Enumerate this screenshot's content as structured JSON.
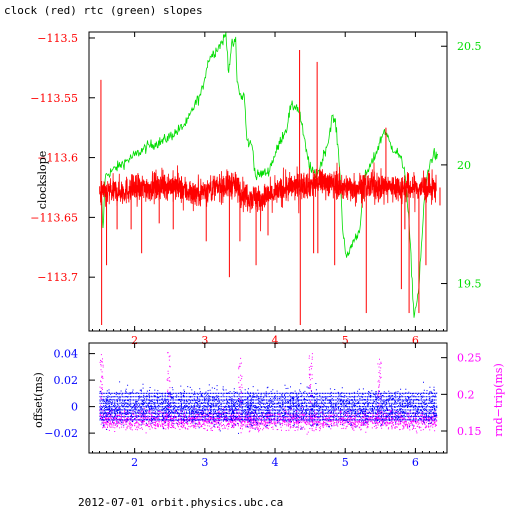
{
  "title": "clock (red) rtc (green) slopes",
  "footer": "2012-07-01  orbit.physics.ubc.ca",
  "colors": {
    "clock": "#ff0000",
    "rtc": "#00dd00",
    "offset": "#0000ff",
    "rndtrip": "#ff00ff",
    "axis": "#000000"
  },
  "chart_data": [
    {
      "type": "line",
      "ylabel": "clockslope",
      "xlim": [
        1.35,
        6.45
      ],
      "ylim": [
        -113.745,
        -113.495
      ],
      "y2lim": [
        19.3,
        20.56
      ],
      "x_ticks": [
        2,
        3,
        4,
        5,
        6
      ],
      "y_ticks": [
        -113.5,
        -113.55,
        -113.6,
        -113.65,
        -113.7
      ],
      "y_tick_labels": [
        "−113.5",
        "−113.55",
        "−113.6",
        "−113.65",
        "−113.7"
      ],
      "y2_ticks": [
        20.5,
        20,
        19.5
      ],
      "y2_tick_labels": [
        "20.5",
        "20",
        "19.5"
      ],
      "series": [
        {
          "name": "clock",
          "color": "#ff0000",
          "axis": "left",
          "baseline": -113.625,
          "noise": 0.006,
          "spikes": [
            [
              1.52,
              -113.535
            ],
            [
              1.53,
              -113.74
            ],
            [
              1.6,
              -113.69
            ],
            [
              1.75,
              -113.66
            ],
            [
              1.95,
              -113.66
            ],
            [
              2.1,
              -113.68
            ],
            [
              2.35,
              -113.655
            ],
            [
              2.55,
              -113.66
            ],
            [
              3.02,
              -113.67
            ],
            [
              3.35,
              -113.7
            ],
            [
              3.5,
              -113.67
            ],
            [
              3.73,
              -113.69
            ],
            [
              3.9,
              -113.665
            ],
            [
              4.35,
              -113.51
            ],
            [
              4.36,
              -113.74
            ],
            [
              4.55,
              -113.68
            ],
            [
              4.6,
              -113.52
            ],
            [
              4.61,
              -113.68
            ],
            [
              4.85,
              -113.69
            ],
            [
              5.3,
              -113.73
            ],
            [
              5.58,
              -113.575
            ],
            [
              5.8,
              -113.71
            ],
            [
              5.85,
              -113.66
            ],
            [
              5.91,
              -113.73
            ],
            [
              6.05,
              -113.73
            ],
            [
              6.15,
              -113.69
            ],
            [
              6.35,
              -113.64
            ]
          ],
          "segments": [
            [
              1.5,
              -113.63
            ],
            [
              2.5,
              -113.623
            ],
            [
              2.85,
              -113.63
            ],
            [
              3.4,
              -113.622
            ],
            [
              3.6,
              -113.632
            ],
            [
              3.8,
              -113.635
            ],
            [
              4.2,
              -113.625
            ],
            [
              4.7,
              -113.62
            ],
            [
              5.0,
              -113.625
            ],
            [
              5.4,
              -113.624
            ],
            [
              5.9,
              -113.625
            ],
            [
              6.3,
              -113.626
            ]
          ]
        },
        {
          "name": "rtc",
          "color": "#00dd00",
          "axis": "right",
          "points": [
            [
              1.52,
              19.92
            ],
            [
              1.55,
              19.72
            ],
            [
              1.58,
              19.95
            ],
            [
              1.65,
              19.97
            ],
            [
              1.8,
              20.0
            ],
            [
              2.0,
              20.04
            ],
            [
              2.2,
              20.08
            ],
            [
              2.4,
              20.1
            ],
            [
              2.6,
              20.14
            ],
            [
              2.75,
              20.18
            ],
            [
              2.85,
              20.25
            ],
            [
              2.95,
              20.3
            ],
            [
              3.02,
              20.4
            ],
            [
              3.06,
              20.45
            ],
            [
              3.15,
              20.48
            ],
            [
              3.25,
              20.52
            ],
            [
              3.3,
              20.55
            ],
            [
              3.34,
              20.4
            ],
            [
              3.38,
              20.5
            ],
            [
              3.44,
              20.52
            ],
            [
              3.46,
              20.35
            ],
            [
              3.52,
              20.28
            ],
            [
              3.56,
              20.3
            ],
            [
              3.6,
              20.1
            ],
            [
              3.68,
              20.08
            ],
            [
              3.72,
              19.95
            ],
            [
              3.78,
              19.96
            ],
            [
              3.9,
              19.97
            ],
            [
              4.05,
              20.08
            ],
            [
              4.1,
              20.12
            ],
            [
              4.16,
              20.15
            ],
            [
              4.22,
              20.24
            ],
            [
              4.3,
              20.25
            ],
            [
              4.35,
              20.22
            ],
            [
              4.45,
              20.05
            ],
            [
              4.52,
              19.97
            ],
            [
              4.6,
              19.96
            ],
            [
              4.65,
              20.0
            ],
            [
              4.7,
              20.05
            ],
            [
              4.76,
              20.1
            ],
            [
              4.81,
              20.2
            ],
            [
              4.86,
              20.18
            ],
            [
              4.92,
              20.0
            ],
            [
              4.96,
              19.75
            ],
            [
              5.02,
              19.6
            ],
            [
              5.1,
              19.67
            ],
            [
              5.2,
              19.72
            ],
            [
              5.28,
              19.95
            ],
            [
              5.4,
              20.02
            ],
            [
              5.5,
              20.1
            ],
            [
              5.56,
              20.15
            ],
            [
              5.65,
              20.08
            ],
            [
              5.75,
              20.05
            ],
            [
              5.85,
              19.98
            ],
            [
              5.92,
              19.7
            ],
            [
              5.98,
              19.36
            ],
            [
              6.05,
              19.48
            ],
            [
              6.12,
              19.82
            ],
            [
              6.18,
              19.98
            ],
            [
              6.26,
              20.05
            ],
            [
              6.33,
              20.02
            ]
          ]
        }
      ]
    },
    {
      "type": "scatter",
      "ylabel": "offset(ms)",
      "y2label": "rnd−trip(ms)",
      "xlim": [
        1.35,
        6.45
      ],
      "ylim": [
        -0.035,
        0.048
      ],
      "y2lim": [
        0.12,
        0.27
      ],
      "x_ticks": [
        2,
        3,
        4,
        5,
        6
      ],
      "y_ticks": [
        0.04,
        0.02,
        0,
        -0.02
      ],
      "y_tick_labels": [
        "0.04",
        "0.02",
        "0",
        "−0.02"
      ],
      "y2_ticks": [
        0.25,
        0.2,
        0.15
      ],
      "y2_tick_labels": [
        "0.25",
        "0.2",
        "0.15"
      ],
      "series": [
        {
          "name": "offset",
          "color": "#0000ff",
          "axis": "left",
          "center": 0.0,
          "spread": 0.012
        },
        {
          "name": "rnd-trip",
          "color": "#ff00ff",
          "axis": "right",
          "center": 0.165,
          "spread": 0.012,
          "peaks": [
            [
              1.52,
              0.255
            ],
            [
              2.48,
              0.258
            ],
            [
              3.5,
              0.25
            ],
            [
              4.5,
              0.256
            ],
            [
              5.48,
              0.25
            ]
          ]
        }
      ]
    }
  ]
}
